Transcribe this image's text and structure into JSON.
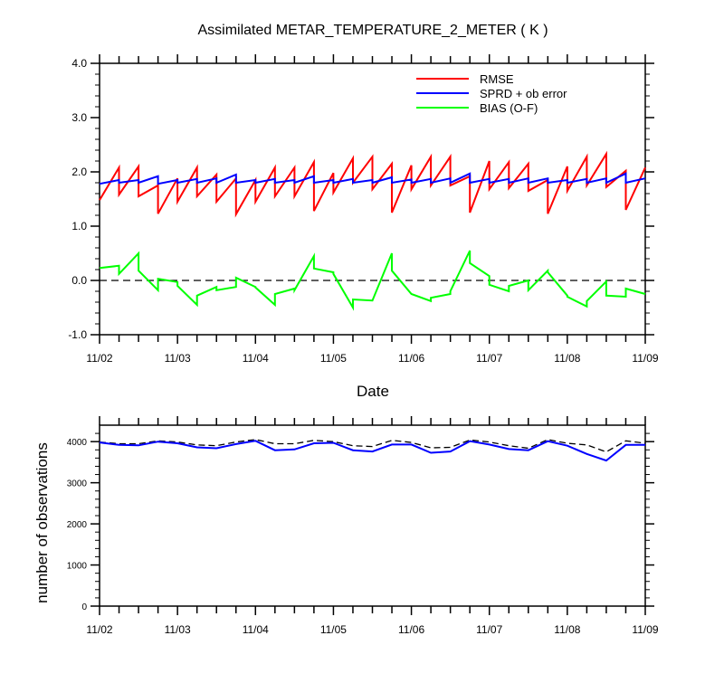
{
  "page": {
    "title": "Assimilated METAR_TEMPERATURE_2_METER ( K )"
  },
  "chart_data": [
    {
      "type": "line",
      "title": "Assimilated METAR_TEMPERATURE_2_METER ( K )",
      "xlabel": "Date",
      "ylabel": "",
      "x_ticks": [
        "11/02",
        "11/03",
        "11/04",
        "11/05",
        "11/06",
        "11/07",
        "11/08",
        "11/09"
      ],
      "y_ticks": [
        "4.0",
        "3.0",
        "2.0",
        "1.0",
        "0.0",
        "-1.0"
      ],
      "xlim": [
        0,
        7
      ],
      "ylim": [
        -1,
        4
      ],
      "grid": false,
      "legend_position": "top-right",
      "reference_line": {
        "y": 0,
        "style": "dashed"
      },
      "series": [
        {
          "name": "RMSE",
          "color": "#ff0000",
          "points": [
            [
              0,
              1.48
            ],
            [
              0.25,
              2.08
            ],
            [
              0.25,
              1.58
            ],
            [
              0.5,
              2.1
            ],
            [
              0.5,
              1.55
            ],
            [
              0.75,
              1.75
            ],
            [
              0.75,
              1.23
            ],
            [
              1,
              1.88
            ],
            [
              1,
              1.45
            ],
            [
              1.25,
              2.08
            ],
            [
              1.25,
              1.55
            ],
            [
              1.5,
              1.95
            ],
            [
              1.5,
              1.45
            ],
            [
              1.75,
              1.88
            ],
            [
              1.75,
              1.22
            ],
            [
              2,
              1.85
            ],
            [
              2,
              1.45
            ],
            [
              2.25,
              2.08
            ],
            [
              2.25,
              1.55
            ],
            [
              2.5,
              2.08
            ],
            [
              2.5,
              1.55
            ],
            [
              2.75,
              2.18
            ],
            [
              2.75,
              1.28
            ],
            [
              3,
              1.98
            ],
            [
              3,
              1.62
            ],
            [
              3.25,
              2.25
            ],
            [
              3.25,
              1.8
            ],
            [
              3.5,
              2.28
            ],
            [
              3.5,
              1.68
            ],
            [
              3.75,
              2.15
            ],
            [
              3.75,
              1.25
            ],
            [
              4,
              2.12
            ],
            [
              4,
              1.68
            ],
            [
              4.25,
              2.28
            ],
            [
              4.25,
              1.75
            ],
            [
              4.5,
              2.28
            ],
            [
              4.5,
              1.75
            ],
            [
              4.75,
              1.92
            ],
            [
              4.75,
              1.25
            ],
            [
              5,
              2.2
            ],
            [
              5,
              1.68
            ],
            [
              5.25,
              2.18
            ],
            [
              5.25,
              1.7
            ],
            [
              5.5,
              2.15
            ],
            [
              5.5,
              1.65
            ],
            [
              5.75,
              1.85
            ],
            [
              5.75,
              1.23
            ],
            [
              6,
              2.1
            ],
            [
              6,
              1.65
            ],
            [
              6.25,
              2.28
            ],
            [
              6.25,
              1.75
            ],
            [
              6.5,
              2.33
            ],
            [
              6.5,
              1.72
            ],
            [
              6.75,
              2.02
            ],
            [
              6.75,
              1.3
            ],
            [
              7,
              2.08
            ]
          ]
        },
        {
          "name": "SPRD + ob error",
          "color": "#0000ff",
          "points": [
            [
              0,
              1.78
            ],
            [
              0.25,
              1.85
            ],
            [
              0.25,
              1.8
            ],
            [
              0.5,
              1.85
            ],
            [
              0.5,
              1.8
            ],
            [
              0.75,
              1.92
            ],
            [
              0.75,
              1.78
            ],
            [
              1,
              1.85
            ],
            [
              1,
              1.8
            ],
            [
              1.25,
              1.87
            ],
            [
              1.25,
              1.8
            ],
            [
              1.5,
              1.88
            ],
            [
              1.5,
              1.8
            ],
            [
              1.75,
              1.95
            ],
            [
              1.75,
              1.8
            ],
            [
              2,
              1.85
            ],
            [
              2,
              1.8
            ],
            [
              2.25,
              1.87
            ],
            [
              2.25,
              1.8
            ],
            [
              2.5,
              1.85
            ],
            [
              2.5,
              1.8
            ],
            [
              2.75,
              1.92
            ],
            [
              2.75,
              1.8
            ],
            [
              3,
              1.85
            ],
            [
              3,
              1.8
            ],
            [
              3.25,
              1.87
            ],
            [
              3.25,
              1.8
            ],
            [
              3.5,
              1.85
            ],
            [
              3.5,
              1.8
            ],
            [
              3.75,
              1.9
            ],
            [
              3.75,
              1.8
            ],
            [
              4,
              1.86
            ],
            [
              4,
              1.8
            ],
            [
              4.25,
              1.87
            ],
            [
              4.25,
              1.8
            ],
            [
              4.5,
              1.88
            ],
            [
              4.5,
              1.8
            ],
            [
              4.75,
              1.97
            ],
            [
              4.75,
              1.8
            ],
            [
              5,
              1.87
            ],
            [
              5,
              1.8
            ],
            [
              5.25,
              1.87
            ],
            [
              5.25,
              1.8
            ],
            [
              5.5,
              1.88
            ],
            [
              5.5,
              1.8
            ],
            [
              5.75,
              1.88
            ],
            [
              5.75,
              1.8
            ],
            [
              6,
              1.85
            ],
            [
              6,
              1.8
            ],
            [
              6.25,
              1.87
            ],
            [
              6.25,
              1.8
            ],
            [
              6.5,
              1.88
            ],
            [
              6.5,
              1.8
            ],
            [
              6.75,
              1.97
            ],
            [
              6.75,
              1.8
            ],
            [
              7,
              1.88
            ]
          ]
        },
        {
          "name": "BIAS (O-F)",
          "color": "#00ff00",
          "points": [
            [
              0,
              0.23
            ],
            [
              0.25,
              0.27
            ],
            [
              0.25,
              0.12
            ],
            [
              0.5,
              0.5
            ],
            [
              0.5,
              0.18
            ],
            [
              0.75,
              -0.18
            ],
            [
              0.75,
              0.03
            ],
            [
              1,
              -0.03
            ],
            [
              1,
              -0.1
            ],
            [
              1.25,
              -0.45
            ],
            [
              1.25,
              -0.28
            ],
            [
              1.5,
              -0.12
            ],
            [
              1.5,
              -0.18
            ],
            [
              1.75,
              -0.12
            ],
            [
              1.75,
              0.05
            ],
            [
              2,
              -0.12
            ],
            [
              2,
              -0.13
            ],
            [
              2.25,
              -0.45
            ],
            [
              2.25,
              -0.25
            ],
            [
              2.5,
              -0.15
            ],
            [
              2.5,
              -0.18
            ],
            [
              2.75,
              0.45
            ],
            [
              2.75,
              0.22
            ],
            [
              3,
              0.15
            ],
            [
              3,
              0.12
            ],
            [
              3.25,
              -0.5
            ],
            [
              3.25,
              -0.35
            ],
            [
              3.5,
              -0.37
            ],
            [
              3.5,
              -0.37
            ],
            [
              3.75,
              0.5
            ],
            [
              3.75,
              0.18
            ],
            [
              4,
              -0.25
            ],
            [
              4,
              -0.25
            ],
            [
              4.25,
              -0.38
            ],
            [
              4.25,
              -0.32
            ],
            [
              4.5,
              -0.25
            ],
            [
              4.5,
              -0.2
            ],
            [
              4.75,
              0.55
            ],
            [
              4.75,
              0.32
            ],
            [
              5,
              0.08
            ],
            [
              5,
              -0.08
            ],
            [
              5.25,
              -0.2
            ],
            [
              5.25,
              -0.1
            ],
            [
              5.5,
              0.0
            ],
            [
              5.5,
              -0.18
            ],
            [
              5.75,
              0.18
            ],
            [
              5.75,
              0.15
            ],
            [
              6,
              -0.28
            ],
            [
              6,
              -0.3
            ],
            [
              6.25,
              -0.48
            ],
            [
              6.25,
              -0.38
            ],
            [
              6.5,
              -0.02
            ],
            [
              6.5,
              -0.28
            ],
            [
              6.75,
              -0.3
            ],
            [
              6.75,
              -0.15
            ],
            [
              7,
              -0.25
            ]
          ]
        }
      ]
    },
    {
      "type": "line",
      "title": "",
      "xlabel": "",
      "ylabel": "number of observations",
      "x_ticks": [
        "11/02",
        "11/03",
        "11/04",
        "11/05",
        "11/06",
        "11/07",
        "11/08",
        "11/09"
      ],
      "y_ticks": [
        "4000",
        "3000",
        "2000",
        "1000",
        "0"
      ],
      "xlim": [
        0,
        7
      ],
      "ylim": [
        0,
        4400
      ],
      "grid": false,
      "series": [
        {
          "name": "",
          "color": "#000000",
          "style": "dashed",
          "points": [
            [
              0,
              3990
            ],
            [
              0.25,
              3950
            ],
            [
              0.5,
              3950
            ],
            [
              0.75,
              4020
            ],
            [
              1,
              3990
            ],
            [
              1.25,
              3920
            ],
            [
              1.5,
              3900
            ],
            [
              1.75,
              3990
            ],
            [
              2,
              4050
            ],
            [
              2.25,
              3950
            ],
            [
              2.5,
              3950
            ],
            [
              2.75,
              4030
            ],
            [
              3,
              4000
            ],
            [
              3.25,
              3900
            ],
            [
              3.5,
              3880
            ],
            [
              3.75,
              4030
            ],
            [
              4,
              3980
            ],
            [
              4.25,
              3850
            ],
            [
              4.5,
              3860
            ],
            [
              4.75,
              4040
            ],
            [
              5,
              3990
            ],
            [
              5.25,
              3900
            ],
            [
              5.5,
              3840
            ],
            [
              5.75,
              4050
            ],
            [
              6,
              3960
            ],
            [
              6.25,
              3920
            ],
            [
              6.5,
              3750
            ],
            [
              6.75,
              4020
            ],
            [
              7,
              3960
            ]
          ]
        },
        {
          "name": "",
          "color": "#0000ff",
          "style": "solid",
          "points": [
            [
              0,
              3980
            ],
            [
              0.25,
              3920
            ],
            [
              0.5,
              3910
            ],
            [
              0.75,
              4000
            ],
            [
              1,
              3960
            ],
            [
              1.25,
              3860
            ],
            [
              1.5,
              3840
            ],
            [
              1.75,
              3940
            ],
            [
              2,
              4020
            ],
            [
              2.25,
              3790
            ],
            [
              2.5,
              3810
            ],
            [
              2.75,
              3960
            ],
            [
              3,
              3970
            ],
            [
              3.25,
              3790
            ],
            [
              3.5,
              3760
            ],
            [
              3.75,
              3930
            ],
            [
              4,
              3930
            ],
            [
              4.25,
              3730
            ],
            [
              4.5,
              3760
            ],
            [
              4.75,
              4010
            ],
            [
              5,
              3930
            ],
            [
              5.25,
              3820
            ],
            [
              5.5,
              3790
            ],
            [
              5.75,
              4010
            ],
            [
              6,
              3900
            ],
            [
              6.25,
              3700
            ],
            [
              6.5,
              3540
            ],
            [
              6.75,
              3920
            ],
            [
              7,
              3920
            ]
          ]
        }
      ]
    }
  ]
}
